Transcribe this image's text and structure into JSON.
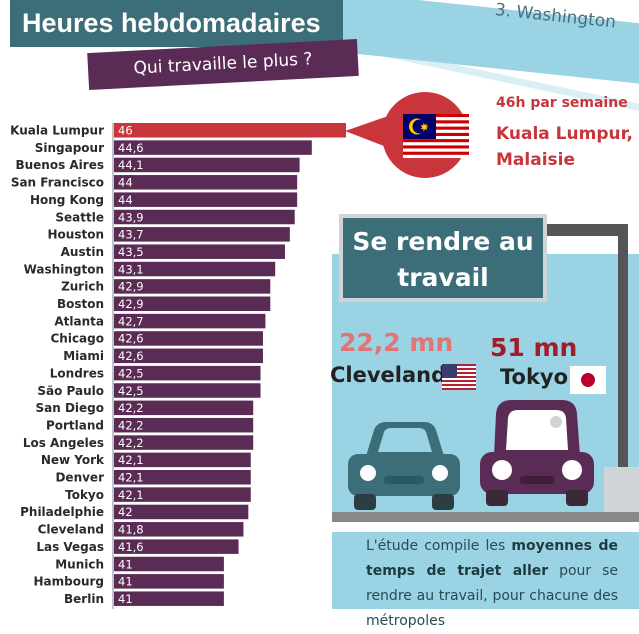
{
  "header": {
    "title": "Heures hebdomadaires",
    "subtitle": "Qui travaille le plus ?",
    "top_right_label": "3. Washington"
  },
  "callout": {
    "line1": "46h par semaine",
    "line2": "Kuala Lumpur, Malaisie",
    "flag_icon": "malaysia-flag-icon"
  },
  "commute": {
    "title": "Se rendre au travail",
    "city_a": {
      "value": "22,2 mn",
      "name": "Cleveland",
      "flag_icon": "usa-flag-icon"
    },
    "city_b": {
      "value": "51 mn",
      "name": "Tokyo",
      "flag_icon": "japan-flag-icon"
    },
    "desc_pre": "L'étude compile les ",
    "desc_bold": "moyennes de temps de trajet aller",
    "desc_post": " pour se rendre au travail, pour chacune des métropoles"
  },
  "colors": {
    "bar": "#5a2c55",
    "highlight": "#c8353b",
    "teal": "#3c6e79",
    "light_blue": "#9ad3e4"
  },
  "chart_data": {
    "type": "bar",
    "orientation": "horizontal",
    "categories": [
      "Kuala Lumpur",
      "Singapour",
      "Buenos Aires",
      "San Francisco",
      "Hong Kong",
      "Seattle",
      "Houston",
      "Austin",
      "Washington",
      "Zurich",
      "Boston",
      "Atlanta",
      "Chicago",
      "Miami",
      "Londres",
      "São Paulo",
      "San Diego",
      "Portland",
      "Los Angeles",
      "New York",
      "Denver",
      "Tokyo",
      "Philadelphie",
      "Cleveland",
      "Las Vegas",
      "Munich",
      "Hambourg",
      "Berlin"
    ],
    "values": [
      46,
      44.6,
      44.1,
      44,
      44,
      43.9,
      43.7,
      43.5,
      43.1,
      42.9,
      42.9,
      42.7,
      42.6,
      42.6,
      42.5,
      42.5,
      42.2,
      42.2,
      42.2,
      42.1,
      42.1,
      42.1,
      42,
      41.8,
      41.6,
      41,
      41,
      41
    ],
    "value_labels": [
      "46",
      "44,6",
      "44,1",
      "44",
      "44",
      "43,9",
      "43,7",
      "43,5",
      "43,1",
      "42,9",
      "42,9",
      "42,7",
      "42,6",
      "42,6",
      "42,5",
      "42,5",
      "42,2",
      "42,2",
      "42,2",
      "42,1",
      "42,1",
      "42,1",
      "42",
      "41,8",
      "41,6",
      "41",
      "41",
      "41"
    ],
    "highlight_index": 0,
    "xlim": [
      36.5,
      46
    ]
  }
}
